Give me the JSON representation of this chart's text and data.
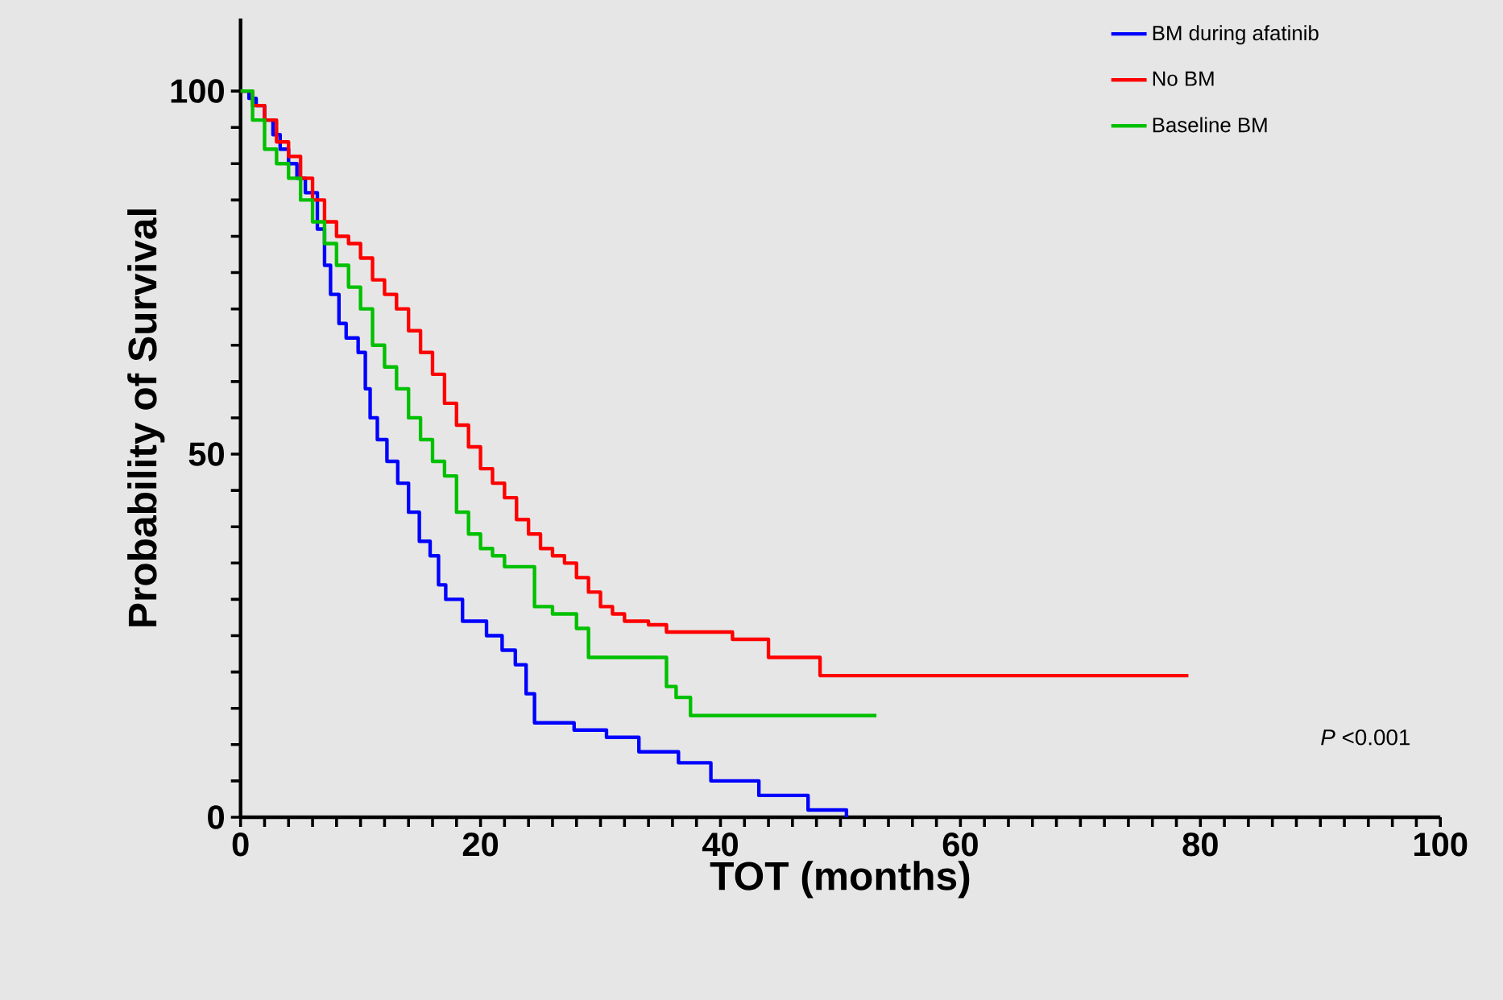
{
  "chart_data": {
    "type": "step",
    "xlabel": "TOT (months)",
    "ylabel": "Probability of Survival",
    "annotations": [
      "*P* <0.001"
    ],
    "xlim": [
      0,
      100
    ],
    "ylim": [
      0,
      110
    ],
    "xticks": [
      0,
      {
        "value": 2,
        "label": null
      },
      {
        "value": 4,
        "label": null
      },
      {
        "value": 6,
        "label": null
      },
      {
        "value": 8,
        "label": null
      },
      {
        "value": 10,
        "label": null
      },
      {
        "value": 12,
        "label": null
      },
      {
        "value": 14,
        "label": null
      },
      {
        "value": 16,
        "label": null
      },
      {
        "value": 18,
        "label": null
      },
      20,
      {
        "value": 22,
        "label": null
      },
      {
        "value": 24,
        "label": null
      },
      {
        "value": 26,
        "label": null
      },
      {
        "value": 28,
        "label": null
      },
      {
        "value": 30,
        "label": null
      },
      {
        "value": 32,
        "label": null
      },
      {
        "value": 34,
        "label": null
      },
      {
        "value": 36,
        "label": null
      },
      {
        "value": 38,
        "label": null
      },
      40,
      {
        "value": 42,
        "label": null
      },
      {
        "value": 44,
        "label": null
      },
      {
        "value": 46,
        "label": null
      },
      {
        "value": 48,
        "label": null
      },
      {
        "value": 50,
        "label": null
      },
      {
        "value": 52,
        "label": null
      },
      {
        "value": 54,
        "label": null
      },
      {
        "value": 56,
        "label": null
      },
      {
        "value": 58,
        "label": null
      },
      60,
      {
        "value": 62,
        "label": null
      },
      {
        "value": 64,
        "label": null
      },
      {
        "value": 66,
        "label": null
      },
      {
        "value": 68,
        "label": null
      },
      {
        "value": 70,
        "label": null
      },
      {
        "value": 72,
        "label": null
      },
      {
        "value": 74,
        "label": null
      },
      {
        "value": 76,
        "label": null
      },
      {
        "value": 78,
        "label": null
      },
      80,
      {
        "value": 82,
        "label": null
      },
      {
        "value": 84,
        "label": null
      },
      {
        "value": 86,
        "label": null
      },
      {
        "value": 88,
        "label": null
      },
      {
        "value": 90,
        "label": null
      },
      {
        "value": 92,
        "label": null
      },
      {
        "value": 94,
        "label": null
      },
      {
        "value": 96,
        "label": null
      },
      {
        "value": 98,
        "label": null
      },
      100
    ],
    "yticks": [
      0,
      {
        "value": 5,
        "label": null
      },
      {
        "value": 10,
        "label": null
      },
      {
        "value": 15,
        "label": null
      },
      {
        "value": 20,
        "label": null
      },
      {
        "value": 25,
        "label": null
      },
      {
        "value": 30,
        "label": null
      },
      {
        "value": 35,
        "label": null
      },
      {
        "value": 40,
        "label": null
      },
      {
        "value": 45,
        "label": null
      },
      50,
      {
        "value": 55,
        "label": null
      },
      {
        "value": 60,
        "label": null
      },
      {
        "value": 65,
        "label": null
      },
      {
        "value": 70,
        "label": null
      },
      {
        "value": 75,
        "label": null
      },
      {
        "value": 80,
        "label": null
      },
      {
        "value": 85,
        "label": null
      },
      {
        "value": 90,
        "label": null
      },
      {
        "value": 95,
        "label": null
      },
      100
    ],
    "legend": "top right",
    "grid": false,
    "marker": "none",
    "line_style": "solid",
    "series": [
      {
        "name": "BM during afatinib",
        "color": "#0000ff",
        "x": [
          0,
          0.7,
          1.3,
          2,
          2.7,
          3.3,
          4,
          4.7,
          5.4,
          6.4,
          7,
          7.5,
          8.2,
          8.8,
          9.8,
          10.4,
          10.8,
          11.4,
          12.2,
          13.1,
          14,
          14.9,
          15.8,
          16.5,
          17.1,
          18.5,
          20.5,
          21.8,
          22.9,
          23.8,
          24.5,
          27.8,
          30.5,
          33.2,
          36.5,
          39.2,
          43.2,
          47.3,
          50.5
        ],
        "values": [
          100,
          99,
          98,
          96,
          94,
          92,
          90,
          88,
          86,
          81,
          76,
          72,
          68,
          66,
          64,
          59,
          55,
          52,
          49,
          46,
          42,
          38,
          36,
          32,
          30,
          27,
          25,
          23,
          21,
          17,
          13,
          12,
          11,
          9,
          7.5,
          5,
          3,
          1,
          0
        ]
      },
      {
        "name": "No BM",
        "color": "#ff0000",
        "x": [
          0,
          1,
          2,
          3,
          4,
          5,
          6,
          7,
          8,
          9,
          10,
          11,
          12,
          13,
          14,
          15,
          16,
          17,
          18,
          19,
          20,
          21,
          22,
          23,
          24,
          25,
          26,
          27,
          28,
          29,
          30,
          31,
          32,
          34,
          35.5,
          41,
          44,
          48.3,
          79
        ],
        "values": [
          100,
          98,
          96,
          93,
          91,
          88,
          85,
          82,
          80,
          79,
          77,
          74,
          72,
          70,
          67,
          64,
          61,
          57,
          54,
          51,
          48,
          46,
          44,
          41,
          39,
          37,
          36,
          35,
          33,
          31,
          29,
          28,
          27,
          26.5,
          25.5,
          24.5,
          22,
          19.5,
          19.5
        ]
      },
      {
        "name": "Baseline BM",
        "color": "#00c000",
        "x": [
          0,
          1,
          2,
          3,
          4,
          5,
          6,
          7,
          8,
          9,
          10,
          11,
          12,
          13,
          14,
          15,
          16,
          17,
          18,
          19,
          20,
          21,
          22,
          24.5,
          26,
          28,
          29,
          35.5,
          36.3,
          37.5,
          53
        ],
        "values": [
          100,
          96,
          92,
          90,
          88,
          85,
          82,
          79,
          76,
          73,
          70,
          65,
          62,
          59,
          55,
          52,
          49,
          47,
          42,
          39,
          37,
          36,
          34.5,
          29,
          28,
          26,
          22,
          18,
          16.5,
          14,
          14
        ]
      }
    ]
  }
}
